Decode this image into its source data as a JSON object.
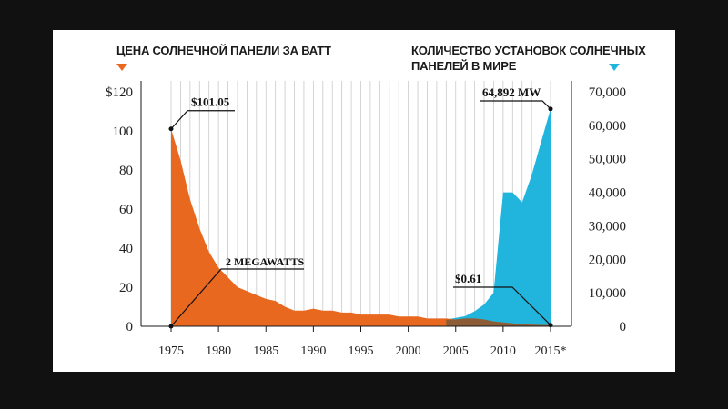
{
  "header": {
    "left_title": "ЦЕНА СОЛНЕЧНОЙ ПАНЕЛИ ЗА ВАТТ",
    "right_title": "КОЛИЧЕСТВО УСТАНОВОК СОЛНЕЧНЫХ ПАНЕЛЕЙ В МИРЕ"
  },
  "colors": {
    "price": "#e8681f",
    "installs": "#21b5de",
    "overlap": "#7a5a3a",
    "grid": "#c9c9c9",
    "axis": "#1a1a1a"
  },
  "chart_data": {
    "type": "area",
    "x": [
      1975,
      1976,
      1977,
      1978,
      1979,
      1980,
      1981,
      1982,
      1983,
      1984,
      1985,
      1986,
      1987,
      1988,
      1989,
      1990,
      1991,
      1992,
      1993,
      1994,
      1995,
      1996,
      1997,
      1998,
      1999,
      2000,
      2001,
      2002,
      2003,
      2004,
      2005,
      2006,
      2007,
      2008,
      2009,
      2010,
      2011,
      2012,
      2013,
      2014,
      2015
    ],
    "xticks": [
      1975,
      1980,
      1985,
      1990,
      1995,
      2000,
      2005,
      2010,
      2015
    ],
    "xtick_labels": [
      "1975",
      "1980",
      "1985",
      "1990",
      "1995",
      "2000",
      "2005",
      "2010",
      "2015*"
    ],
    "y_left": {
      "ticks": [
        0,
        20,
        40,
        60,
        80,
        100,
        120
      ],
      "tick_labels": [
        "0",
        "20",
        "40",
        "60",
        "80",
        "100",
        "$120"
      ],
      "lim": [
        0,
        120
      ]
    },
    "y_right": {
      "ticks": [
        0,
        10000,
        20000,
        30000,
        40000,
        50000,
        60000,
        70000
      ],
      "tick_labels": [
        "0",
        "10,000",
        "20,000",
        "30,000",
        "40,000",
        "50,000",
        "60,000",
        "70,000"
      ],
      "lim": [
        0,
        70000
      ]
    },
    "series": [
      {
        "axis": "left",
        "values": [
          101.05,
          85,
          65,
          50,
          38,
          30,
          25,
          20,
          18,
          16,
          14,
          13,
          10,
          8,
          8,
          9,
          8,
          8,
          7,
          7,
          6,
          6,
          6,
          6,
          5,
          5,
          5,
          4,
          4,
          4,
          3.5,
          4,
          4,
          3.5,
          2.5,
          2,
          1.5,
          1,
          0.8,
          0.7,
          0.61
        ]
      },
      {
        "axis": "right",
        "values": [
          2,
          3,
          5,
          8,
          10,
          15,
          20,
          30,
          40,
          50,
          60,
          70,
          80,
          100,
          120,
          150,
          180,
          200,
          250,
          300,
          350,
          400,
          500,
          600,
          700,
          900,
          1200,
          1500,
          1800,
          2000,
          2500,
          3000,
          4500,
          6500,
          10000,
          40000,
          40000,
          37000,
          45000,
          55000,
          64892
        ]
      }
    ],
    "annotations": [
      {
        "text": "$101.05",
        "year": 1975,
        "value": 101.05,
        "axis": "left"
      },
      {
        "text": "2 MEGAWATTS",
        "year": 1975,
        "value": 2,
        "axis": "right"
      },
      {
        "text": "$0.61",
        "year": 2015,
        "value": 0.61,
        "axis": "left"
      },
      {
        "text": "64,892 MW",
        "year": 2015,
        "value": 64892,
        "axis": "right"
      }
    ]
  }
}
